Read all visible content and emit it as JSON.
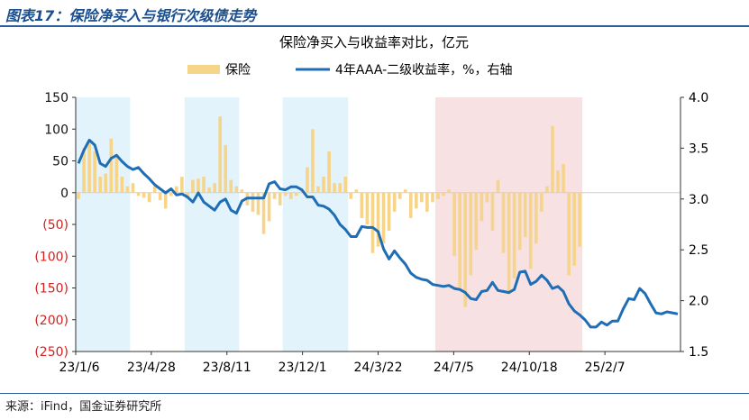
{
  "figure_title": "图表17：保险净买入与银行次级债走势",
  "source": "来源：iFind，国金证券研究所",
  "colors": {
    "bar": "#f6d48a",
    "line": "#1f6eb5",
    "shade_blue": "#e2f3fb",
    "shade_red": "#f7e1e3",
    "negative_tick": "#d42020",
    "title_blue": "#1a4f8f"
  },
  "chart_data": {
    "type": "bar+line",
    "title": "保险净买入与收益率对比，亿元",
    "legend": {
      "position": "top",
      "items": [
        {
          "label": "保险",
          "kind": "bar"
        },
        {
          "label": "4年AAA-二级收益率，%，右轴",
          "kind": "line"
        }
      ]
    },
    "x_ticks": [
      "23/1/6",
      "23/4/28",
      "23/8/11",
      "23/12/1",
      "24/3/22",
      "24/7/5",
      "24/10/18",
      "25/2/7"
    ],
    "y_left": {
      "ylim": [
        -250,
        150
      ],
      "tick_values": [
        150,
        100,
        50,
        0,
        -50,
        -100,
        -150,
        -200,
        -250
      ],
      "tick_labels": [
        "150",
        "100",
        "50",
        "0",
        "(50)",
        "(100)",
        "(150)",
        "(200)",
        "(250)"
      ]
    },
    "y_right": {
      "ylim": [
        1.5,
        4.0
      ],
      "tick_labels": [
        "4.0",
        "3.5",
        "3.0",
        "2.5",
        "2.0",
        "1.5"
      ]
    },
    "shaded_periods": [
      {
        "start_week": 0,
        "end_week": 10,
        "color": "blue"
      },
      {
        "start_week": 20,
        "end_week": 30,
        "color": "blue"
      },
      {
        "start_week": 38,
        "end_week": 50,
        "color": "blue"
      },
      {
        "start_week": 66,
        "end_week": 93,
        "color": "red"
      }
    ],
    "series": [
      {
        "name": "保险",
        "type": "bar",
        "values": [
          -10,
          70,
          80,
          65,
          25,
          30,
          85,
          55,
          25,
          10,
          15,
          -5,
          -8,
          -15,
          10,
          -12,
          -25,
          -5,
          10,
          25,
          -8,
          20,
          22,
          25,
          8,
          15,
          120,
          75,
          20,
          10,
          5,
          -20,
          -30,
          -35,
          -65,
          -45,
          -10,
          -20,
          -5,
          -10,
          -5,
          5,
          40,
          100,
          10,
          25,
          65,
          15,
          15,
          25,
          -10,
          5,
          -40,
          -50,
          -95,
          -85,
          -80,
          -60,
          -30,
          -10,
          5,
          -40,
          -25,
          -15,
          -30,
          -15,
          -10,
          -5,
          5,
          -100,
          -150,
          -180,
          -130,
          -90,
          -45,
          -15,
          -60,
          20,
          -95,
          -160,
          -135,
          -90,
          -70,
          -120,
          -80,
          -30,
          10,
          105,
          35,
          45,
          -130,
          -115,
          -85
        ]
      },
      {
        "name": "4年AAA-二级收益率，%，右轴",
        "type": "line",
        "values": [
          3.35,
          3.48,
          3.58,
          3.53,
          3.35,
          3.32,
          3.4,
          3.43,
          3.37,
          3.32,
          3.29,
          3.31,
          3.25,
          3.2,
          3.14,
          3.1,
          3.06,
          3.1,
          3.04,
          3.05,
          3.02,
          2.97,
          3.06,
          2.97,
          2.93,
          2.89,
          2.97,
          3.0,
          2.89,
          2.86,
          2.98,
          3.01,
          3.01,
          3.01,
          3.01,
          3.15,
          3.17,
          3.1,
          3.09,
          3.12,
          3.12,
          3.09,
          3.02,
          3.02,
          2.94,
          2.93,
          2.9,
          2.84,
          2.75,
          2.7,
          2.63,
          2.63,
          2.73,
          2.72,
          2.72,
          2.68,
          2.51,
          2.41,
          2.49,
          2.42,
          2.36,
          2.27,
          2.23,
          2.21,
          2.2,
          2.16,
          2.15,
          2.14,
          2.15,
          2.12,
          2.11,
          2.08,
          2.02,
          2.01,
          2.09,
          2.1,
          2.18,
          2.1,
          2.09,
          2.08,
          2.11,
          2.28,
          2.29,
          2.16,
          2.19,
          2.25,
          2.2,
          2.12,
          2.14,
          2.09,
          1.97,
          1.9
        ]
      }
    ],
    "line_tail": [
      1.86,
      1.81,
      1.74,
      1.74,
      1.79,
      1.76,
      1.8,
      1.8,
      1.92,
      2.02,
      2.01,
      2.12,
      2.07,
      1.97,
      1.88,
      1.87,
      1.89,
      1.88,
      1.87
    ]
  }
}
